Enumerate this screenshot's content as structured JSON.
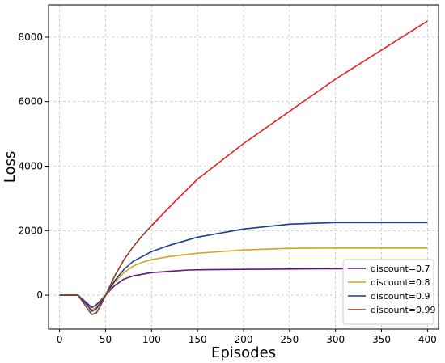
{
  "chart_data": {
    "type": "line",
    "title": "",
    "xlabel": "Episodes",
    "ylabel": "Loss",
    "xlim": [
      -12,
      412
    ],
    "ylim": [
      -1050,
      9000
    ],
    "xticks": [
      0,
      50,
      100,
      150,
      200,
      250,
      300,
      350,
      400
    ],
    "yticks": [
      0,
      2000,
      4000,
      6000,
      8000
    ],
    "grid": true,
    "legend_position": "lower-right",
    "series": [
      {
        "name": "discount=0.7",
        "color": "#5b1a7a",
        "x": [
          0,
          20,
          30,
          35,
          40,
          45,
          50,
          60,
          70,
          80,
          90,
          100,
          110,
          120,
          130,
          140,
          160,
          200,
          250,
          300,
          330,
          340,
          350,
          360,
          380,
          400
        ],
        "y": [
          0,
          0,
          -250,
          -380,
          -300,
          -150,
          0,
          300,
          500,
          600,
          650,
          700,
          720,
          740,
          760,
          780,
          790,
          800,
          810,
          820,
          820,
          730,
          760,
          780,
          790,
          750
        ]
      },
      {
        "name": "discount=0.8",
        "color": "#d4a51c",
        "x": [
          0,
          20,
          30,
          35,
          40,
          45,
          50,
          60,
          70,
          80,
          90,
          100,
          120,
          150,
          200,
          250,
          300,
          350,
          400
        ],
        "y": [
          0,
          0,
          -300,
          -450,
          -380,
          -200,
          0,
          400,
          700,
          900,
          1020,
          1100,
          1200,
          1300,
          1400,
          1450,
          1460,
          1460,
          1460
        ]
      },
      {
        "name": "discount=0.9",
        "color": "#1f3a93",
        "x": [
          0,
          20,
          30,
          35,
          40,
          45,
          50,
          60,
          70,
          80,
          90,
          100,
          120,
          150,
          200,
          250,
          300,
          350,
          400
        ],
        "y": [
          0,
          0,
          -300,
          -500,
          -420,
          -220,
          0,
          450,
          800,
          1050,
          1200,
          1350,
          1550,
          1800,
          2050,
          2200,
          2250,
          2250,
          2250
        ]
      },
      {
        "name": "discount=0.99",
        "color": "#8b3a1a",
        "x": [
          0,
          20,
          30,
          35,
          40,
          45,
          50,
          60,
          70,
          80,
          90,
          100,
          110
        ],
        "y": [
          0,
          0,
          -400,
          -600,
          -550,
          -300,
          0,
          600,
          1100,
          1500,
          1850,
          2150,
          2450
        ]
      },
      {
        "name": "",
        "color": "#e8201e",
        "x": [
          100,
          120,
          150,
          200,
          250,
          300,
          350,
          400
        ],
        "y": [
          2150,
          2750,
          3600,
          4700,
          5700,
          6700,
          7600,
          8500
        ]
      }
    ]
  }
}
